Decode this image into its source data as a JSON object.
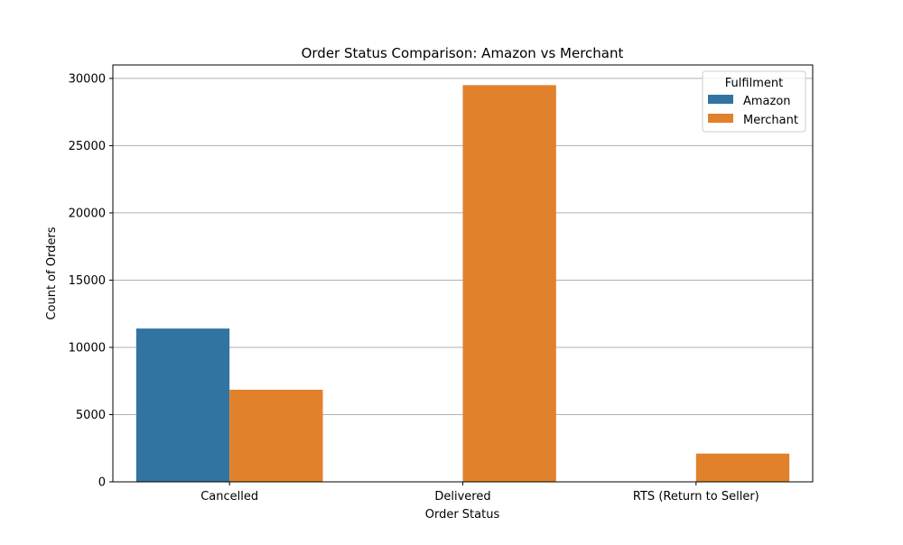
{
  "chart_data": {
    "type": "bar",
    "title": "Order Status Comparison: Amazon vs Merchant",
    "xlabel": "Order Status",
    "ylabel": "Count of Orders",
    "categories": [
      "Cancelled",
      "Delivered",
      "RTS (Return to Seller)"
    ],
    "series": [
      {
        "name": "Amazon",
        "values": [
          11400,
          0,
          0
        ],
        "color": "#3274a1"
      },
      {
        "name": "Merchant",
        "values": [
          6850,
          29500,
          2100
        ],
        "color": "#e1812c"
      }
    ],
    "ylim": [
      0,
      31000
    ],
    "yticks": [
      "0",
      "5000",
      "10000",
      "15000",
      "20000",
      "25000",
      "30000"
    ],
    "ytick_values": [
      0,
      5000,
      10000,
      15000,
      20000,
      25000,
      30000
    ],
    "grid": "horizontal",
    "legend": {
      "title": "Fulfilment",
      "position": "top-right"
    }
  }
}
